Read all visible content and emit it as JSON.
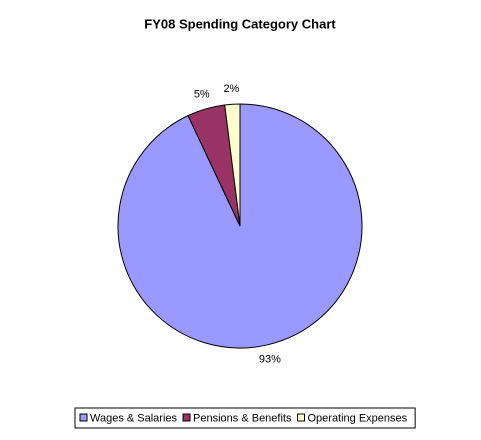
{
  "chart_data": {
    "type": "pie",
    "title": "FY08 Spending Category Chart",
    "categories": [
      "Wages & Salaries",
      "Pensions & Benefits",
      "Operating Expenses"
    ],
    "values": [
      93,
      5,
      2
    ],
    "value_labels": [
      "93%",
      "5%",
      "2%"
    ],
    "colors": [
      "#9999ff",
      "#993366",
      "#ffffcc"
    ],
    "legend": "bottom"
  }
}
